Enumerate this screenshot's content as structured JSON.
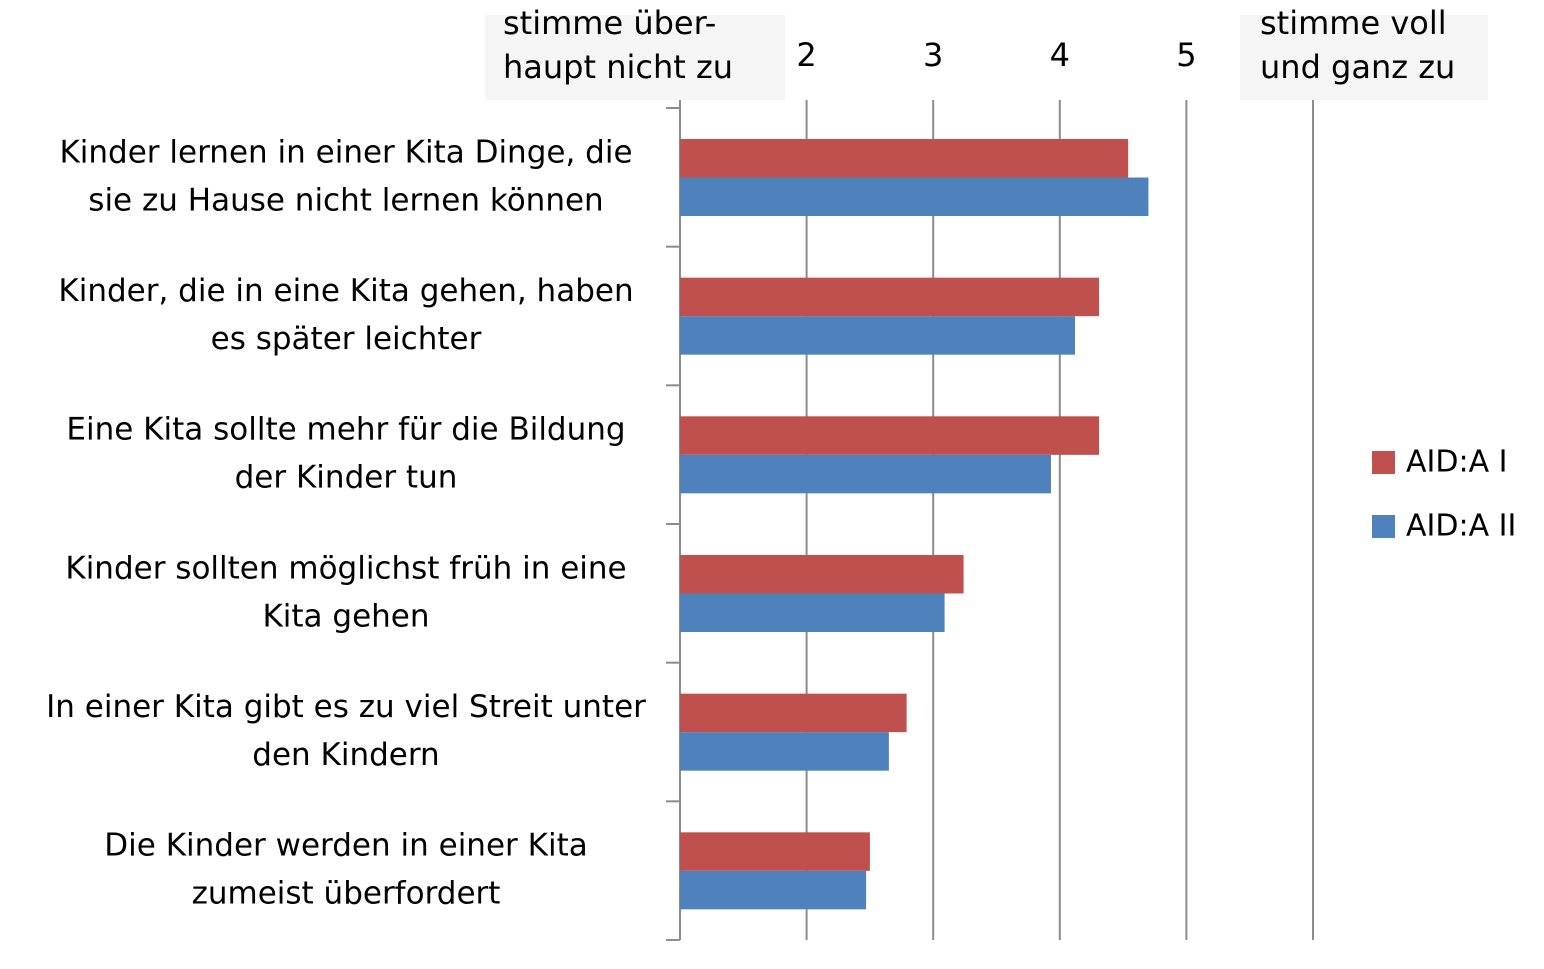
{
  "chart_data": {
    "type": "hbar",
    "categories": [
      "Kinder lernen in einer Kita Dinge, die\nsie zu Hause nicht lernen können",
      "Kinder, die in eine Kita gehen, haben\nes später leichter",
      "Eine Kita sollte mehr für die Bildung\nder Kinder tun",
      "Kinder sollten möglichst früh in eine\nKita gehen",
      "In einer Kita gibt es zu viel Streit unter\nden Kindern",
      "Die Kinder werden in einer Kita\nzumeist überfordert"
    ],
    "series": [
      {
        "name": "AID:A I",
        "color": "#c0504d",
        "values": [
          4.54,
          4.31,
          4.31,
          3.24,
          2.79,
          2.5
        ]
      },
      {
        "name": "AID:A II",
        "color": "#4f81bd",
        "values": [
          4.7,
          4.12,
          3.93,
          3.09,
          2.65,
          2.47
        ]
      }
    ],
    "xlim": [
      1,
      6
    ],
    "xticks": [
      {
        "value": 1,
        "label": "stimme über-\nhaupt nicht zu"
      },
      2,
      3,
      4,
      5,
      {
        "value": 6,
        "label": "stimme voll\nund ganz zu"
      }
    ],
    "grid": true,
    "legend": "right"
  }
}
